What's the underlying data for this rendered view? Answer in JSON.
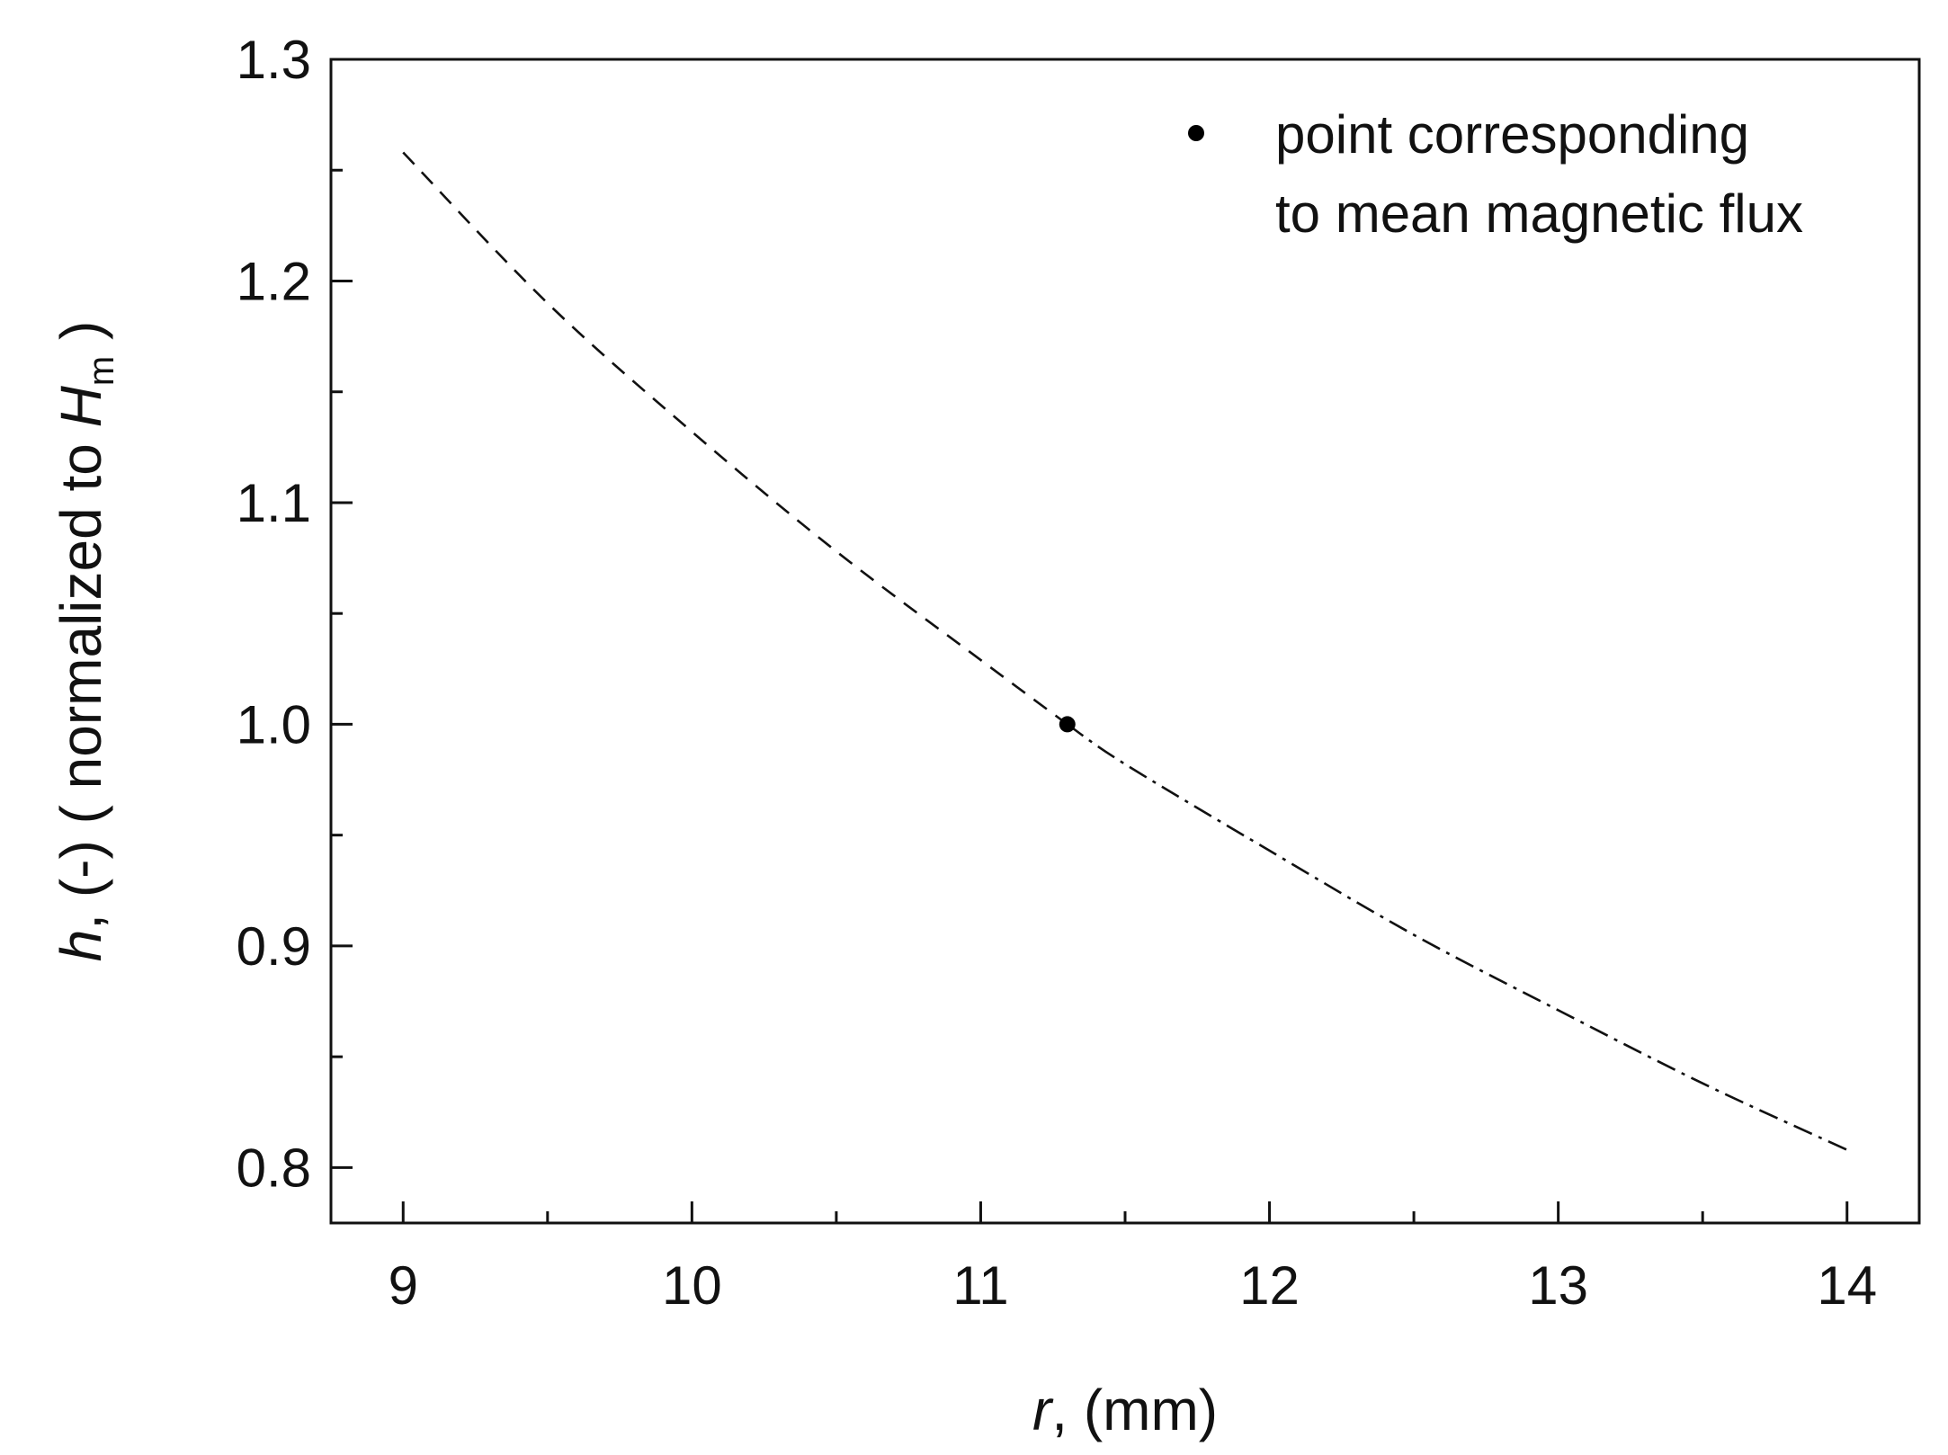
{
  "chart_data": {
    "type": "line",
    "xlim": [
      8.75,
      14.25
    ],
    "ylim": [
      0.775,
      1.3
    ],
    "x_ticks": [
      9,
      10,
      11,
      12,
      13,
      14
    ],
    "x_tick_labels": [
      "9",
      "10",
      "11",
      "12",
      "13",
      "14"
    ],
    "y_ticks": [
      0.8,
      0.9,
      1.0,
      1.1,
      1.2,
      1.3
    ],
    "y_tick_labels": [
      "0.8",
      "0.9",
      "1.0",
      "1.1",
      "1.2",
      "1.3"
    ],
    "xlabel": {
      "var": "r",
      "rest": ", (mm)"
    },
    "ylabel": {
      "var": "h",
      "rest": ", (-) ( normalized to ",
      "var2": "H",
      "sub": "m",
      "close": " )"
    },
    "grid": false,
    "legend": {
      "position": "top-right",
      "marker": "filled-circle",
      "lines": [
        "point corresponding",
        "to mean magnetic flux"
      ]
    },
    "series": [
      {
        "style": "dashed",
        "x": [
          9.0,
          9.5,
          10.0,
          10.5,
          11.0,
          11.3
        ],
        "y": [
          1.258,
          1.19,
          1.132,
          1.078,
          1.029,
          1.0
        ]
      },
      {
        "style": "dash-dot",
        "x": [
          11.3,
          11.5,
          12.0,
          12.5,
          13.0,
          13.5,
          14.0
        ],
        "y": [
          1.0,
          0.982,
          0.943,
          0.905,
          0.871,
          0.838,
          0.808
        ]
      }
    ],
    "points": [
      {
        "x": 11.3,
        "y": 1.0
      }
    ],
    "colors": {
      "line": "#111111",
      "axis": "#111111",
      "marker": "#000000"
    }
  }
}
